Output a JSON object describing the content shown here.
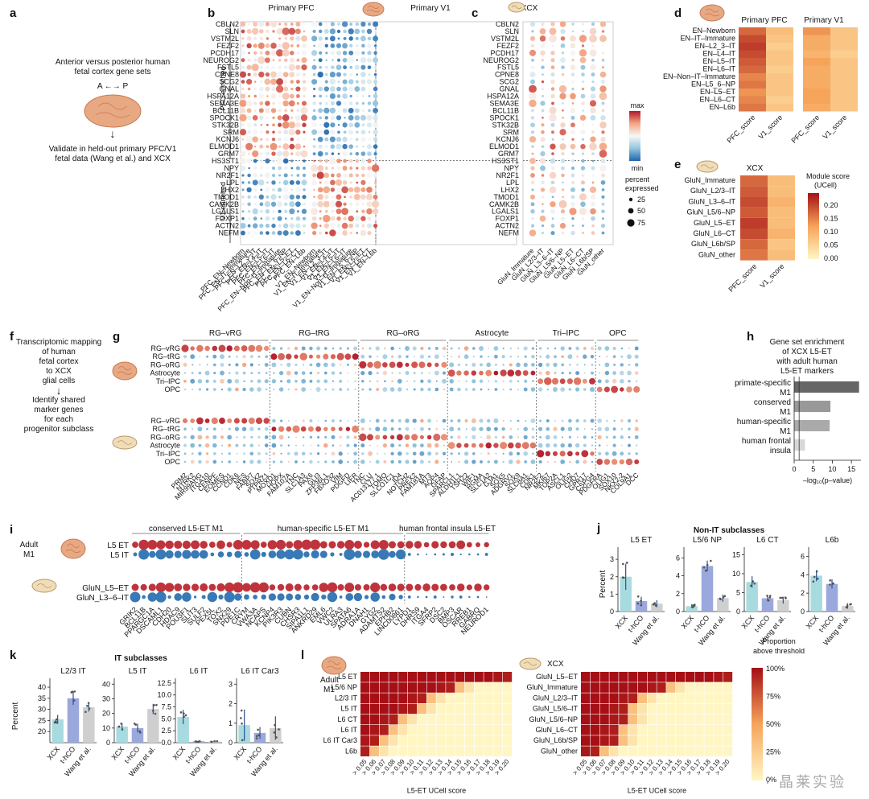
{
  "colors": {
    "red": "#b2182b",
    "blue": "#2166ac",
    "light_red": "#f4a582",
    "light_blue": "#92c5de",
    "neutral": "#f7f7f7",
    "bar_xcx": "#a8dbe0",
    "bar_thco": "#9aa8dc",
    "bar_wang": "#cfcfcf",
    "score_lo": "#fff2b0",
    "score_hi": "#b2182b"
  },
  "panels": {
    "a": "a",
    "b": "b",
    "c": "c",
    "d": "d",
    "e": "e",
    "f": "f",
    "g": "g",
    "h": "h",
    "i": "i",
    "j": "j",
    "k": "k",
    "l": "l"
  },
  "a": {
    "line1": "Anterior versus posterior human",
    "line2": "fetal cortex gene sets",
    "arrow_label": "A ←→ P",
    "arrow": "↓",
    "line3": "Validate in held-out primary PFC/V1",
    "line4": "fetal data (Wang et al.) and XCX"
  },
  "b": {
    "title_pfc": "Primary PFC",
    "title_v1": "Primary V1",
    "group_pfc": "PFC enriched",
    "group_v1": "V1 enriched",
    "genes": [
      "CBLN2",
      "SLN",
      "VSTM2L",
      "FEZF2",
      "PCDH17",
      "NEUROG2",
      "FSTL5",
      "CPNE8",
      "SCG2",
      "GNAL",
      "HSPA12A",
      "SEMA3E",
      "BCL11B",
      "SPOCK1",
      "STK32B",
      "SRM",
      "KCNJ6",
      "ELMOD1",
      "GRM7",
      "HS3ST1",
      "NPY",
      "NR2F1",
      "LPL",
      "LHX2",
      "TMOD1",
      "CAMK2B",
      "LGALS1",
      "FOXP1",
      "ACTN2",
      "NEFM"
    ],
    "columns": [
      "PFC_EN–Newborn",
      "PFC_EN–IT–Immature",
      "PFC_EN–L2_3–IT",
      "PFC_EN–L4–IT",
      "PFC_EN–L5–IT",
      "PFC_EN–L6–IT",
      "PFC_EN–Non–IT–Immature",
      "PFC_EN–L5_6–NP",
      "PFC_EN–L5–ET",
      "PFC_EN–L6–CT",
      "PFC_EN–L6b",
      "V1_EN–Newborn",
      "V1_EN–IT–Immature",
      "V1_EN–L2_3–IT",
      "V1_EN–L4–IT",
      "V1_EN–L5–IT",
      "V1_EN–L6–IT",
      "V1_EN–Non–IT–Immature",
      "V1_EN–L5_6–NP",
      "V1_EN–L5–ET",
      "V1_EN–L6–CT",
      "V1_EN–L6b"
    ],
    "legend": {
      "max": "max",
      "min": "min",
      "pct_title_1": "percent",
      "pct_title_2": "expressed",
      "s1": "25",
      "s2": "50",
      "s3": "75"
    }
  },
  "c": {
    "title": "XCX",
    "columns": [
      "GluN_Immature",
      "GluN_L2/3–IT",
      "GluN_L3–6–IT",
      "GluN_L5/6–NP",
      "GluN_L5–ET",
      "GluN_L6–CT",
      "GluN_L6b/SP",
      "GluN_other"
    ]
  },
  "d": {
    "title_pfc": "Primary PFC",
    "title_v1": "Primary V1",
    "rows": [
      "EN–Newborn",
      "EN–IT–Immature",
      "EN–L2_3–IT",
      "EN–L4–IT",
      "EN–L5–IT",
      "EN–L6–IT",
      "EN–Non–IT–Immature",
      "EN–L5_6–NP",
      "EN–L5–ET",
      "EN–L6–CT",
      "EN–L6b"
    ],
    "cols": [
      "PFC_score",
      "V1_score"
    ]
  },
  "e": {
    "title": "XCX",
    "rows": [
      "GluN_Immature",
      "GluN_L2/3–IT",
      "GluN_L3–6–IT",
      "GluN_L5/6–NP",
      "GluN_L5–ET",
      "GluN_L6–CT",
      "GluN_L6b/SP",
      "GluN_other"
    ],
    "cols": [
      "PFC_score",
      "V1_score"
    ],
    "legend_title_1": "Module score",
    "legend_title_2": "(UCell)",
    "ticks": [
      "0.20",
      "0.15",
      "0.10",
      "0.05",
      "0.00"
    ]
  },
  "f": {
    "line1": "Transcriptomic mapping",
    "line2": "of human",
    "line3": "fetal cortex",
    "line4": "to XCX",
    "line5": "glial cells",
    "arrow": "↓",
    "line6": "Identify shared",
    "line7": "marker genes",
    "line8": "for each",
    "line9": "progenitor subclass"
  },
  "g": {
    "groups": [
      "RG–vRG",
      "RG–tRG",
      "RG–oRG",
      "Astrocyte",
      "Tri–IPC",
      "OPC"
    ],
    "rows": [
      "RG–vRG",
      "RG–tRG",
      "RG–oRG",
      "Astrocyte",
      "Tri–IPC",
      "OPC"
    ],
    "genes": [
      "PRM2",
      "NTRK2",
      "MIR99AHG",
      "ITGA10",
      "CENPF",
      "EOMES",
      "CCND1",
      "CDK6",
      "NES",
      "FABP7",
      "SOX2",
      "PTPRZ1",
      "MOXD1",
      "HOPX",
      "FAM107A",
      "TNC",
      "SLC1A3",
      "PAX6",
      "GLI3",
      "ZFP36L1",
      "FBXO32",
      "VIM",
      "PDGFD",
      "LIFR",
      "TNC",
      "CLU",
      "AC013177.1",
      "TOMO",
      "SLCO1C1",
      "ID4",
      "NOTCH2",
      "PREX2",
      "FAM181A",
      "MT3",
      "AQP4",
      "GFAP",
      "SPARCL1",
      "ALDH1L1",
      "TSHZ2",
      "WIF1",
      "RGMA",
      "SLC1A2",
      "GJA1",
      "SOX5",
      "ADGRV1",
      "SOX9",
      "SLC8A1",
      "CDK1",
      "NR2F2",
      "MKI67",
      "TOP2A",
      "ASCL1",
      "OLIG2",
      "CHD7",
      "GPR17",
      "CSPG4",
      "PDGFRA",
      "OLIG1",
      "SOX10",
      "NKX2-2",
      "COL9A1",
      "DCC"
    ]
  },
  "h": {
    "title_1": "Gene set enrichment",
    "title_2": "of XCX L5-ET",
    "title_3": "with adult human",
    "title_4": "L5-ET markers",
    "xlabel": "–log₁₀(p–value)",
    "ticks": [
      "0",
      "5",
      "10",
      "15"
    ],
    "categories": [
      "primate-specific M1",
      "conserved M1",
      "human-specific M1",
      "human frontal insula"
    ],
    "values": [
      17.0,
      9.5,
      9.3,
      2.8
    ],
    "xlim": [
      0,
      17.5
    ]
  },
  "i": {
    "row_label_adult_1": "Adult",
    "row_label_adult_2": "M1",
    "rows_adult": [
      "L5 ET",
      "L5 IT"
    ],
    "rows_xcx": [
      "GluN_L5–ET",
      "GluN_L3–6–IT"
    ],
    "groups": [
      "conserved L5-ET M1",
      "human-specific L5-ET M1",
      "human frontal insula L5-ET"
    ],
    "genes": [
      "GRIK2",
      "BCL11B",
      "PPARGC1A",
      "DSCAML1",
      "CDH20",
      "HDAC9",
      "POU3F1",
      "SLIT3",
      "SULF2",
      "PEX5L",
      "TOX2",
      "SNX29",
      "PDE1C",
      "CRYM",
      "VWA3A",
      "NCAPS",
      "KCNP4",
      "PIK3R3",
      "CUBN",
      "CHSR3",
      "SIPA1L1",
      "ANKRD29",
      "EML6",
      "VWC2",
      "ULRA3",
      "SPATA6",
      "ADRA1A",
      "DNAH1",
      "GYG2",
      "ADAMTS2",
      "EPHB2",
      "LINC00861",
      "LYPD1",
      "DHRS9",
      "ITGA4",
      "SFRP2",
      "DSC2",
      "BMP3",
      "OSCAR",
      "RREB1",
      "GABRQ",
      "NEUROD1"
    ]
  },
  "j": {
    "header": "Non-IT subclasses",
    "ylabel": "Percent",
    "charts": [
      {
        "title": "L5 ET",
        "ticks": [
          "0",
          "1",
          "2",
          "3"
        ],
        "ylim": [
          0,
          3.7
        ],
        "categories": [
          "XCX",
          "t-hCO",
          "Wang et al."
        ],
        "values": [
          2.0,
          0.6,
          0.45
        ],
        "errors": [
          0.75,
          0.25,
          0.2
        ]
      },
      {
        "title": "L5/6 NP",
        "ticks": [
          "0",
          "2",
          "4",
          "6"
        ],
        "ylim": [
          0,
          7.2
        ],
        "categories": [
          "XCX",
          "t-hCO",
          "Wang et al."
        ],
        "values": [
          0.6,
          5.1,
          1.5
        ],
        "errors": [
          0.2,
          0.6,
          0.4
        ]
      },
      {
        "title": "L6 CT",
        "ticks": [
          "0",
          "5",
          "10",
          "15"
        ],
        "ylim": [
          0,
          17
        ],
        "categories": [
          "XCX",
          "t-hCO",
          "Wang et al."
        ],
        "values": [
          7.8,
          3.5,
          3.0
        ],
        "errors": [
          1.5,
          0.8,
          0.9
        ]
      },
      {
        "title": "L6b",
        "ticks": [
          "0",
          "2",
          "4",
          "6"
        ],
        "ylim": [
          0,
          7.0
        ],
        "categories": [
          "XCX",
          "t-hCO",
          "Wang et al."
        ],
        "values": [
          3.9,
          3.0,
          0.6
        ],
        "errors": [
          0.6,
          0.5,
          0.3
        ]
      }
    ]
  },
  "k": {
    "header": "IT subclasses",
    "ylabel": "Percent",
    "charts": [
      {
        "title": "L2/3 IT",
        "ticks": [
          "20",
          "25",
          "30",
          "35",
          "40"
        ],
        "ylim": [
          15,
          44
        ],
        "categories": [
          "XCX",
          "t-hCO",
          "Wang et al."
        ],
        "values": [
          25.5,
          35.0,
          31.0
        ],
        "errors": [
          2.0,
          3.0,
          2.0
        ]
      },
      {
        "title": "L5 IT",
        "ticks": [
          "0",
          "10",
          "20",
          "30",
          "40"
        ],
        "ylim": [
          0,
          44
        ],
        "categories": [
          "XCX",
          "t-hCO",
          "Wang et al."
        ],
        "values": [
          11.0,
          10.0,
          23.0
        ],
        "errors": [
          2.5,
          3.0,
          3.5
        ]
      },
      {
        "title": "L6 IT",
        "ticks": [
          "0.0",
          "2.5",
          "5.0",
          "7.5",
          "10.0",
          "12.5"
        ],
        "ylim": [
          0,
          13.5
        ],
        "categories": [
          "XCX",
          "t-hCO",
          "Wang et al."
        ],
        "values": [
          5.4,
          0.3,
          0.25
        ],
        "errors": [
          1.5,
          0.15,
          0.1
        ]
      },
      {
        "title": "L6 IT Car3",
        "ticks": [
          "0",
          "1",
          "2",
          "3"
        ],
        "ylim": [
          0,
          3.3
        ],
        "categories": [
          "XCX",
          "t-hCO",
          "Wang et al."
        ],
        "values": [
          0.9,
          0.5,
          0.75
        ],
        "errors": [
          0.8,
          0.3,
          0.6
        ]
      }
    ]
  },
  "l": {
    "label_adult_1": "Adult",
    "label_adult_2": "M1",
    "label_xcx": "XCX",
    "rows_adult": [
      "L5 ET",
      "L5/6 NP",
      "L2/3 IT",
      "L5 IT",
      "L6 CT",
      "L6 IT",
      "L6 IT Car3",
      "L6b"
    ],
    "rows_xcx": [
      "GluN_L5–ET",
      "GluN_Immature",
      "GluN_L2/3–IT",
      "GluN_L5/6–IT",
      "GluN_L5/6–NP",
      "GluN_L6–CT",
      "GluN_L6b/SP",
      "GluN_other"
    ],
    "thresholds": [
      "> 0.05",
      "> 0.06",
      "> 0.07",
      "> 0.08",
      "> 0.09",
      "> 0.10",
      "> 0.11",
      "> 0.12",
      "> 0.13",
      "> 0.14",
      "> 0.15",
      "> 0.16",
      "> 0.17",
      "> 0.18",
      "> 0.19",
      "> 0.20"
    ],
    "xlabel": "L5-ET UCell score",
    "legend_title_1": "Proportion",
    "legend_title_2": "above threshold",
    "legend_ticks": [
      "100%",
      "75%",
      "50%",
      "25%",
      "0%"
    ],
    "adult_cutoffs": [
      16,
      10,
      7,
      6,
      4,
      3,
      2,
      1
    ],
    "xcx_cutoffs": [
      16,
      9,
      6,
      5,
      5,
      4,
      4,
      2
    ]
  },
  "watermark": "· 晶莱实验"
}
